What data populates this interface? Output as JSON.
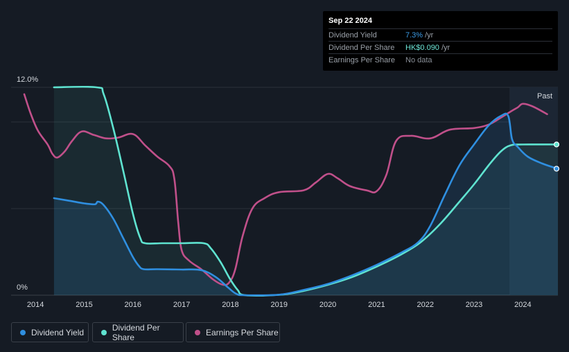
{
  "tooltip": {
    "date": "Sep 22 2024",
    "rows": [
      {
        "label": "Dividend Yield",
        "value": "7.3%",
        "unit": "/yr",
        "color": "#3b9be5"
      },
      {
        "label": "Dividend Per Share",
        "value": "HK$0.090",
        "unit": "/yr",
        "color": "#6ee7d8"
      },
      {
        "label": "Earnings Per Share",
        "value": "No data",
        "unit": "",
        "color": "#8a9099"
      }
    ]
  },
  "legend": [
    {
      "label": "Dividend Yield",
      "color": "#2f8fe0"
    },
    {
      "label": "Dividend Per Share",
      "color": "#5fe3d0"
    },
    {
      "label": "Earnings Per Share",
      "color": "#c0508a"
    }
  ],
  "chart_data": {
    "type": "line",
    "title": "",
    "xlabel": "",
    "ylabel": "",
    "ylim": [
      0,
      12.0
    ],
    "xlim": [
      2013.5,
      2024.72
    ],
    "y_top_label": "12.0%",
    "y_bottom_label": "0%",
    "past_label": "Past",
    "past_start": 2023.74,
    "x_ticks": [
      2014,
      2015,
      2016,
      2017,
      2018,
      2019,
      2020,
      2021,
      2022,
      2023,
      2024
    ],
    "x_tick_labels": [
      "2014",
      "2015",
      "2016",
      "2017",
      "2018",
      "2019",
      "2020",
      "2021",
      "2022",
      "2023",
      "2024"
    ],
    "series": [
      {
        "name": "Dividend Yield",
        "color": "#2f8fe0",
        "filled": true,
        "points": [
          [
            2014.38,
            5.6
          ],
          [
            2014.7,
            5.45
          ],
          [
            2015.0,
            5.3
          ],
          [
            2015.22,
            5.25
          ],
          [
            2015.28,
            5.4
          ],
          [
            2015.4,
            5.2
          ],
          [
            2015.6,
            4.4
          ],
          [
            2015.8,
            3.3
          ],
          [
            2016.0,
            2.2
          ],
          [
            2016.12,
            1.7
          ],
          [
            2016.22,
            1.5
          ],
          [
            2016.5,
            1.5
          ],
          [
            2017.0,
            1.48
          ],
          [
            2017.4,
            1.45
          ],
          [
            2017.7,
            1.05
          ],
          [
            2017.95,
            0.45
          ],
          [
            2018.12,
            0.08
          ],
          [
            2018.3,
            0.0
          ],
          [
            2019.0,
            0.03
          ],
          [
            2019.5,
            0.3
          ],
          [
            2020.0,
            0.65
          ],
          [
            2020.5,
            1.15
          ],
          [
            2021.0,
            1.75
          ],
          [
            2021.5,
            2.45
          ],
          [
            2021.85,
            3.05
          ],
          [
            2022.1,
            4.0
          ],
          [
            2022.4,
            5.8
          ],
          [
            2022.7,
            7.5
          ],
          [
            2023.0,
            8.7
          ],
          [
            2023.3,
            9.8
          ],
          [
            2023.55,
            10.35
          ],
          [
            2023.7,
            10.35
          ],
          [
            2023.78,
            9.0
          ],
          [
            2023.9,
            8.55
          ],
          [
            2024.1,
            8.0
          ],
          [
            2024.4,
            7.6
          ],
          [
            2024.72,
            7.3
          ]
        ],
        "end_marker": true
      },
      {
        "name": "Dividend Per Share",
        "color": "#5fe3d0",
        "filled": true,
        "points": [
          [
            2014.38,
            12.0
          ],
          [
            2015.25,
            12.0
          ],
          [
            2015.4,
            11.6
          ],
          [
            2015.6,
            9.6
          ],
          [
            2015.8,
            7.2
          ],
          [
            2016.0,
            4.7
          ],
          [
            2016.15,
            3.3
          ],
          [
            2016.25,
            3.0
          ],
          [
            2016.6,
            3.0
          ],
          [
            2017.0,
            3.0
          ],
          [
            2017.45,
            3.0
          ],
          [
            2017.6,
            2.7
          ],
          [
            2017.8,
            1.9
          ],
          [
            2018.0,
            0.9
          ],
          [
            2018.15,
            0.3
          ],
          [
            2018.3,
            0.0
          ],
          [
            2019.0,
            0.02
          ],
          [
            2019.5,
            0.25
          ],
          [
            2020.0,
            0.6
          ],
          [
            2020.5,
            1.05
          ],
          [
            2021.0,
            1.65
          ],
          [
            2021.5,
            2.35
          ],
          [
            2021.9,
            3.05
          ],
          [
            2022.3,
            4.1
          ],
          [
            2022.7,
            5.4
          ],
          [
            2023.0,
            6.4
          ],
          [
            2023.3,
            7.5
          ],
          [
            2023.55,
            8.3
          ],
          [
            2023.75,
            8.65
          ],
          [
            2024.0,
            8.7
          ],
          [
            2024.72,
            8.7
          ]
        ],
        "end_marker": true
      },
      {
        "name": "Earnings Per Share",
        "color": "#c0508a",
        "filled": false,
        "points": [
          [
            2013.77,
            11.6
          ],
          [
            2013.9,
            10.5
          ],
          [
            2014.05,
            9.5
          ],
          [
            2014.25,
            8.7
          ],
          [
            2014.35,
            8.15
          ],
          [
            2014.45,
            7.95
          ],
          [
            2014.6,
            8.3
          ],
          [
            2014.75,
            8.9
          ],
          [
            2014.95,
            9.45
          ],
          [
            2015.2,
            9.25
          ],
          [
            2015.45,
            9.05
          ],
          [
            2015.7,
            9.1
          ],
          [
            2016.0,
            9.3
          ],
          [
            2016.25,
            8.65
          ],
          [
            2016.5,
            8.0
          ],
          [
            2016.75,
            7.45
          ],
          [
            2016.85,
            6.7
          ],
          [
            2016.93,
            4.2
          ],
          [
            2017.0,
            2.6
          ],
          [
            2017.15,
            2.0
          ],
          [
            2017.4,
            1.5
          ],
          [
            2017.65,
            0.9
          ],
          [
            2017.85,
            0.6
          ],
          [
            2017.98,
            0.75
          ],
          [
            2018.1,
            1.5
          ],
          [
            2018.25,
            3.4
          ],
          [
            2018.45,
            5.0
          ],
          [
            2018.7,
            5.6
          ],
          [
            2019.0,
            5.95
          ],
          [
            2019.5,
            6.05
          ],
          [
            2019.75,
            6.5
          ],
          [
            2020.0,
            7.0
          ],
          [
            2020.2,
            6.75
          ],
          [
            2020.45,
            6.3
          ],
          [
            2020.8,
            6.05
          ],
          [
            2021.0,
            6.0
          ],
          [
            2021.2,
            6.95
          ],
          [
            2021.4,
            8.9
          ],
          [
            2021.7,
            9.2
          ],
          [
            2022.1,
            9.05
          ],
          [
            2022.5,
            9.55
          ],
          [
            2023.0,
            9.65
          ],
          [
            2023.3,
            9.85
          ],
          [
            2023.55,
            10.25
          ],
          [
            2023.75,
            10.6
          ],
          [
            2023.9,
            10.85
          ],
          [
            2024.0,
            11.05
          ],
          [
            2024.2,
            10.9
          ],
          [
            2024.5,
            10.45
          ]
        ],
        "end_marker": false
      }
    ]
  }
}
